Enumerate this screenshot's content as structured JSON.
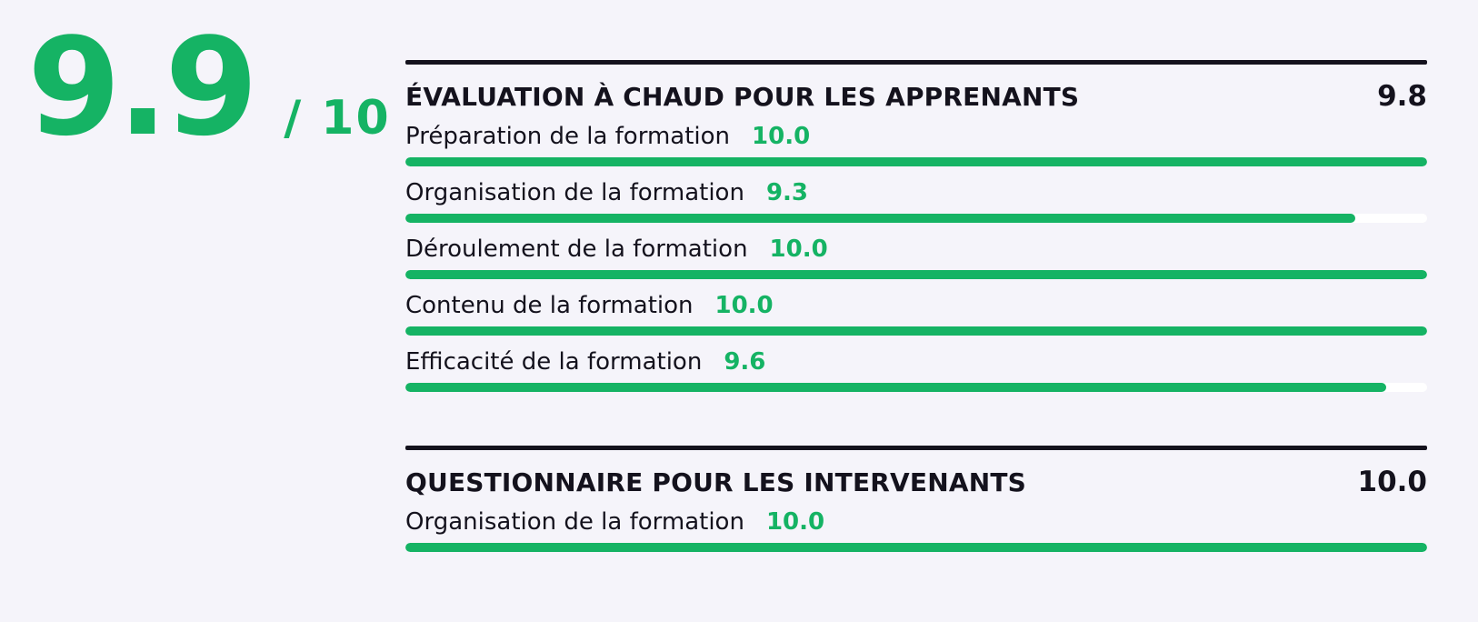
{
  "colors": {
    "background": "#f5f4fa",
    "accent_green": "#15b364",
    "dark_text": "#14121d",
    "bar_track": "#ffffff"
  },
  "overall": {
    "score": "9.9",
    "suffix": "/ 10"
  },
  "chart_data": [
    {
      "type": "bar",
      "title": "ÉVALUATION À CHAUD POUR LES APPRENANTS",
      "score_label": "9.8",
      "categories": [
        "Préparation de la formation",
        "Organisation de la formation",
        "Déroulement de la formation",
        "Contenu de la formation",
        "Efficacité de la formation"
      ],
      "values": [
        10.0,
        9.3,
        10.0,
        10.0,
        9.6
      ],
      "value_labels": [
        "10.0",
        "9.3",
        "10.0",
        "10.0",
        "9.6"
      ],
      "percents": [
        100,
        93,
        100,
        100,
        96
      ],
      "xlim": [
        0,
        10
      ],
      "legend": "none",
      "grid": false
    },
    {
      "type": "bar",
      "title": "QUESTIONNAIRE POUR LES INTERVENANTS",
      "score_label": "10.0",
      "categories": [
        "Organisation de la formation"
      ],
      "values": [
        10.0
      ],
      "value_labels": [
        "10.0"
      ],
      "percents": [
        100
      ],
      "xlim": [
        0,
        10
      ],
      "legend": "none",
      "grid": false
    }
  ]
}
